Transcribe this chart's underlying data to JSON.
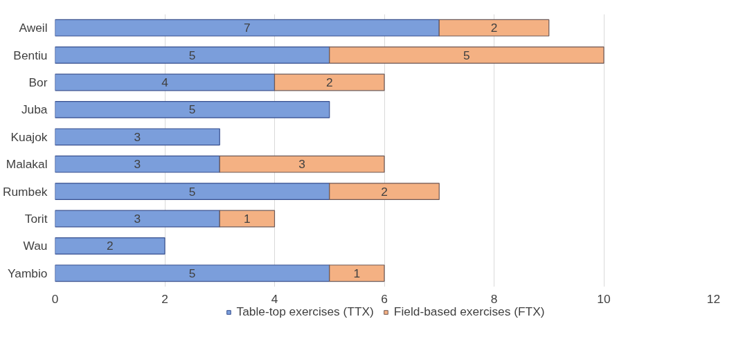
{
  "chart_data": {
    "type": "bar",
    "orientation": "horizontal",
    "stacked": true,
    "categories": [
      "Aweil",
      "Bentiu",
      "Bor",
      "Juba",
      "Kuajok",
      "Malakal",
      "Rumbek",
      "Torit",
      "Wau",
      "Yambio"
    ],
    "series": [
      {
        "name": "Table-top exercises (TTX)",
        "color": "#7b9edb",
        "values": [
          7,
          5,
          4,
          5,
          3,
          3,
          5,
          3,
          2,
          5
        ]
      },
      {
        "name": "Field-based exercises (FTX)",
        "color": "#f4b183",
        "values": [
          2,
          5,
          2,
          null,
          null,
          3,
          2,
          1,
          null,
          1
        ]
      }
    ],
    "xlim": [
      0,
      12
    ],
    "xticks": [
      0,
      2,
      4,
      6,
      8,
      10,
      12
    ],
    "grid": "x",
    "legend": "bottom",
    "data_labels": true
  }
}
